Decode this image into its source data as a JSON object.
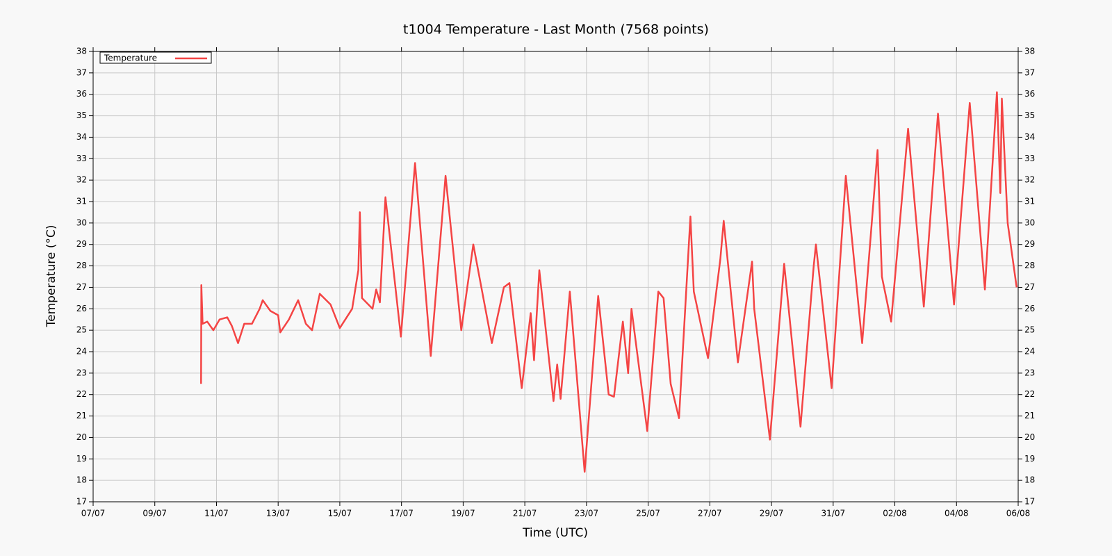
{
  "chart_data": {
    "type": "line",
    "title": "t1004 Temperature - Last Month (7568 points)",
    "x_label": "Time (UTC)",
    "y_label": "Temperature (°C)",
    "legend": "top-left",
    "grid": true,
    "xlim": [
      0,
      30
    ],
    "xticks": [
      {
        "value": 0,
        "label": "07/07"
      },
      {
        "value": 2,
        "label": "09/07"
      },
      {
        "value": 4,
        "label": "11/07"
      },
      {
        "value": 6,
        "label": "13/07"
      },
      {
        "value": 8,
        "label": "15/07"
      },
      {
        "value": 10,
        "label": "17/07"
      },
      {
        "value": 12,
        "label": "19/07"
      },
      {
        "value": 14,
        "label": "21/07"
      },
      {
        "value": 16,
        "label": "23/07"
      },
      {
        "value": 18,
        "label": "25/07"
      },
      {
        "value": 20,
        "label": "27/07"
      },
      {
        "value": 22,
        "label": "29/07"
      },
      {
        "value": 24,
        "label": "31/07"
      },
      {
        "value": 26,
        "label": "02/08"
      },
      {
        "value": 28,
        "label": "04/08"
      },
      {
        "value": 30,
        "label": "06/08"
      }
    ],
    "ylim": [
      17,
      38
    ],
    "yticks": [
      17,
      18,
      19,
      20,
      21,
      22,
      23,
      24,
      25,
      26,
      27,
      28,
      29,
      30,
      31,
      32,
      33,
      34,
      35,
      36,
      37,
      38
    ],
    "x": [
      3.5,
      3.51,
      3.55,
      3.7,
      3.9,
      4.1,
      4.35,
      4.5,
      4.7,
      4.9,
      5.15,
      5.4,
      5.5,
      5.75,
      6.0,
      6.07,
      6.35,
      6.65,
      6.9,
      7.1,
      7.35,
      7.7,
      8.0,
      8.4,
      8.6,
      8.65,
      8.72,
      9.06,
      9.18,
      9.3,
      9.48,
      9.98,
      10.44,
      10.95,
      11.43,
      11.94,
      12.33,
      12.93,
      13.32,
      13.5,
      13.9,
      14.19,
      14.3,
      14.47,
      14.93,
      15.05,
      15.16,
      15.46,
      15.94,
      16.38,
      16.72,
      16.89,
      17.18,
      17.35,
      17.46,
      17.97,
      18.33,
      18.5,
      18.73,
      19.0,
      19.37,
      19.48,
      19.94,
      20.34,
      20.45,
      20.91,
      21.37,
      21.44,
      21.95,
      22.41,
      22.94,
      23.37,
      23.44,
      23.95,
      24.41,
      24.94,
      25.44,
      25.58,
      25.88,
      26.43,
      26.94,
      27.4,
      27.92,
      28.43,
      28.92,
      29.31,
      29.42,
      29.47,
      29.66,
      29.95
    ],
    "series": [
      {
        "name": "Temperature",
        "color": "#f44444",
        "values": [
          22.5,
          27.1,
          25.3,
          25.4,
          25.0,
          25.5,
          25.6,
          25.2,
          24.4,
          25.3,
          25.3,
          26.0,
          26.4,
          25.9,
          25.7,
          24.9,
          25.5,
          26.4,
          25.3,
          25.0,
          26.7,
          26.2,
          25.1,
          26.0,
          27.8,
          30.5,
          26.5,
          26.0,
          26.9,
          26.3,
          31.2,
          24.7,
          32.8,
          23.8,
          32.2,
          25.0,
          29.0,
          24.4,
          27.0,
          27.2,
          22.3,
          25.8,
          23.6,
          27.8,
          21.7,
          23.4,
          21.8,
          26.8,
          18.4,
          26.6,
          22.0,
          21.9,
          25.4,
          23.0,
          26.0,
          20.3,
          26.8,
          26.5,
          22.5,
          20.9,
          30.3,
          26.8,
          23.7,
          28.3,
          30.1,
          23.5,
          28.2,
          26.0,
          19.9,
          28.1,
          20.5,
          28.0,
          29.0,
          22.3,
          32.2,
          24.4,
          33.4,
          27.5,
          25.4,
          34.4,
          26.1,
          35.1,
          26.2,
          35.6,
          26.9,
          36.1,
          31.4,
          35.8,
          30.0,
          27.0
        ]
      }
    ]
  }
}
